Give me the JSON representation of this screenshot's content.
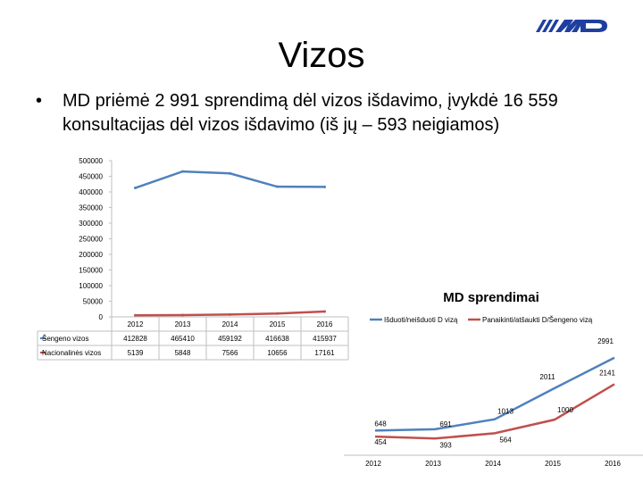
{
  "slide": {
    "title": "Vizos",
    "bullet": "MD priėmė 2 991 sprendimą dėl vizos išdavimo, įvykdė 16 559 konsultacijas dėl vizos išdavimo (iš jų – 593 neigiamos)",
    "bullet_symbol": "•"
  },
  "logo": {
    "icon": "md-logo-icon",
    "color": "#1f3fa0"
  },
  "chart_data": [
    {
      "type": "line",
      "title": "",
      "categories": [
        "2012",
        "2013",
        "2014",
        "2015",
        "2016"
      ],
      "series": [
        {
          "name": "Šengeno vizos",
          "values": [
            412828,
            465410,
            459192,
            416638,
            415937
          ],
          "value_labels": [
            "412828",
            "465410",
            "459192",
            "416638",
            "415937"
          ],
          "color": "#4f81bd"
        },
        {
          "name": "Nacionalinės vizos",
          "values": [
            5139,
            5848,
            7566,
            10656,
            17161
          ],
          "value_labels": [
            "5139",
            "5848",
            "7566",
            "10656",
            "17161"
          ],
          "color": "#c0504d"
        }
      ],
      "ylim": [
        0,
        500000
      ],
      "y_ticks": [
        0,
        50000,
        100000,
        150000,
        200000,
        250000,
        300000,
        350000,
        400000,
        450000,
        500000
      ],
      "y_tick_labels": [
        "0",
        "50000",
        "100000",
        "150000",
        "200000",
        "250000",
        "300000",
        "350000",
        "400000",
        "450000",
        "500000"
      ],
      "data_table": true,
      "grid": false
    },
    {
      "type": "line",
      "title": "MD sprendimai",
      "x": [
        "2012",
        "2013",
        "2014",
        "2015",
        "2016"
      ],
      "legend_position": "top",
      "series": [
        {
          "name": "Išduoti/neišduoti D vizą",
          "values": [
            648,
            691,
            1013,
            2011,
            2991
          ],
          "labels": [
            "648",
            "691",
            "1013",
            "2011",
            "2991"
          ],
          "color": "#4f81bd"
        },
        {
          "name": "Panaikinti/atšaukti D/Šengeno vizą",
          "values": [
            454,
            393,
            564,
            1000,
            2141
          ],
          "labels": [
            "454",
            "393",
            "564",
            "1000",
            "2141"
          ],
          "color": "#c0504d"
        }
      ],
      "ylim": [
        0,
        3300
      ],
      "grid": false
    }
  ]
}
